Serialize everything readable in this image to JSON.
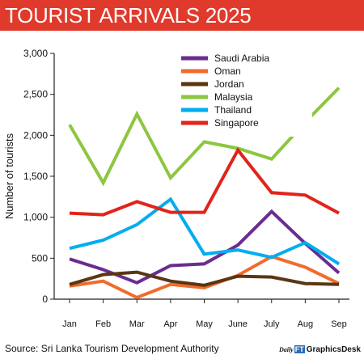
{
  "header": {
    "title": "TOURIST ARRIVALS 2025",
    "title_bg": "#e03a2c"
  },
  "footer": {
    "source": "Source: Sri Lanka Tourism Development Authority",
    "credit_logo_part1": "Daily",
    "credit_logo_part2": "FT",
    "credit_desk": "GraphicsDesk"
  },
  "chart_data": {
    "type": "line",
    "title": "TOURIST ARRIVALS 2025",
    "xlabel": "",
    "ylabel": "Number of tourists",
    "categories": [
      "Jan",
      "Feb",
      "Mar",
      "Apr",
      "May",
      "June",
      "July",
      "Aug",
      "Sep"
    ],
    "ylim": [
      0,
      3000
    ],
    "yticks": [
      0,
      500,
      1000,
      1500,
      2000,
      2500,
      3000
    ],
    "ytick_labels": [
      "0",
      "500",
      "1,000",
      "1,500",
      "2,000",
      "2,500",
      "3,000"
    ],
    "grid": false,
    "legend_position": "top-right",
    "series": [
      {
        "name": "Saudi Arabia",
        "color": "#6a2c91",
        "values": [
          490,
          360,
          200,
          410,
          430,
          660,
          1070,
          680,
          320
        ]
      },
      {
        "name": "Oman",
        "color": "#f26b2a",
        "values": [
          160,
          220,
          20,
          180,
          140,
          290,
          520,
          390,
          190
        ]
      },
      {
        "name": "Jordan",
        "color": "#5a3613",
        "values": [
          180,
          300,
          330,
          220,
          170,
          280,
          270,
          190,
          180
        ]
      },
      {
        "name": "Malaysia",
        "color": "#8dc63f",
        "values": [
          2130,
          1420,
          2260,
          1480,
          1920,
          1840,
          1710,
          2160,
          2580
        ]
      },
      {
        "name": "Thailand",
        "color": "#00aeef",
        "values": [
          620,
          720,
          910,
          1220,
          550,
          600,
          510,
          690,
          430
        ]
      },
      {
        "name": "Singapore",
        "color": "#e2231a",
        "values": [
          1050,
          1030,
          1190,
          1060,
          1060,
          1820,
          1300,
          1270,
          1050
        ]
      }
    ]
  }
}
